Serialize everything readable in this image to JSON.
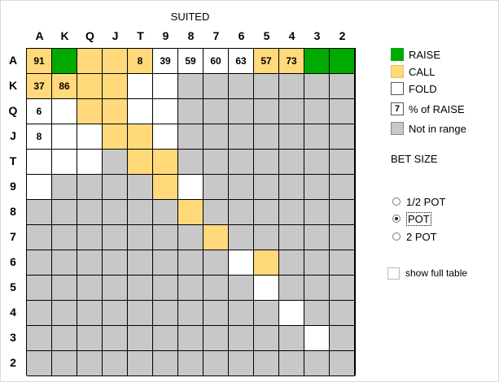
{
  "header": {
    "caption": "SUITED"
  },
  "grid": {
    "col_labels": [
      "A",
      "K",
      "Q",
      "J",
      "T",
      "9",
      "8",
      "7",
      "6",
      "5",
      "4",
      "3",
      "2"
    ],
    "row_labels": [
      "A",
      "K",
      "Q",
      "J",
      "T",
      "9",
      "8",
      "7",
      "6",
      "5",
      "4",
      "3",
      "2"
    ],
    "fills": [
      [
        "c",
        "r",
        "c",
        "c",
        "c",
        "f",
        "f",
        "f",
        "f",
        "c",
        "c",
        "r",
        "r"
      ],
      [
        "c",
        "c",
        "c",
        "c",
        "f",
        "f",
        "n",
        "n",
        "n",
        "n",
        "n",
        "n",
        "n"
      ],
      [
        "f",
        "f",
        "c",
        "c",
        "f",
        "f",
        "n",
        "n",
        "n",
        "n",
        "n",
        "n",
        "n"
      ],
      [
        "f",
        "f",
        "f",
        "c",
        "c",
        "f",
        "n",
        "n",
        "n",
        "n",
        "n",
        "n",
        "n"
      ],
      [
        "f",
        "f",
        "f",
        "n",
        "c",
        "c",
        "n",
        "n",
        "n",
        "n",
        "n",
        "n",
        "n"
      ],
      [
        "f",
        "n",
        "n",
        "n",
        "n",
        "c",
        "f",
        "n",
        "n",
        "n",
        "n",
        "n",
        "n"
      ],
      [
        "n",
        "n",
        "n",
        "n",
        "n",
        "n",
        "c",
        "n",
        "n",
        "n",
        "n",
        "n",
        "n"
      ],
      [
        "n",
        "n",
        "n",
        "n",
        "n",
        "n",
        "n",
        "c",
        "n",
        "n",
        "n",
        "n",
        "n"
      ],
      [
        "n",
        "n",
        "n",
        "n",
        "n",
        "n",
        "n",
        "n",
        "f",
        "c",
        "n",
        "n",
        "n"
      ],
      [
        "n",
        "n",
        "n",
        "n",
        "n",
        "n",
        "n",
        "n",
        "n",
        "f",
        "n",
        "n",
        "n"
      ],
      [
        "n",
        "n",
        "n",
        "n",
        "n",
        "n",
        "n",
        "n",
        "n",
        "n",
        "f",
        "n",
        "n"
      ],
      [
        "n",
        "n",
        "n",
        "n",
        "n",
        "n",
        "n",
        "n",
        "n",
        "n",
        "n",
        "f",
        "n"
      ],
      [
        "n",
        "n",
        "n",
        "n",
        "n",
        "n",
        "n",
        "n",
        "n",
        "n",
        "n",
        "n",
        "n"
      ]
    ],
    "values": [
      [
        "91",
        "",
        "",
        "",
        "8",
        "39",
        "59",
        "60",
        "63",
        "57",
        "73",
        "",
        ""
      ],
      [
        "37",
        "86",
        "",
        "",
        "",
        "",
        "",
        "",
        "",
        "",
        "",
        "",
        ""
      ],
      [
        "6",
        "",
        "",
        "",
        "",
        "",
        "",
        "",
        "",
        "",
        "",
        "",
        ""
      ],
      [
        "8",
        "",
        "",
        "",
        "",
        "",
        "",
        "",
        "",
        "",
        "",
        "",
        ""
      ],
      [
        "",
        "",
        "",
        "",
        "",
        "",
        "",
        "",
        "",
        "",
        "",
        "",
        ""
      ],
      [
        "",
        "",
        "",
        "",
        "",
        "",
        "",
        "",
        "",
        "",
        "",
        "",
        ""
      ],
      [
        "",
        "",
        "",
        "",
        "",
        "",
        "",
        "",
        "",
        "",
        "",
        "",
        ""
      ],
      [
        "",
        "",
        "",
        "",
        "",
        "",
        "",
        "",
        "",
        "",
        "",
        "",
        ""
      ],
      [
        "",
        "",
        "",
        "",
        "",
        "",
        "",
        "",
        "",
        "",
        "",
        "",
        ""
      ],
      [
        "",
        "",
        "",
        "",
        "",
        "",
        "",
        "",
        "",
        "",
        "",
        "",
        ""
      ],
      [
        "",
        "",
        "",
        "",
        "",
        "",
        "",
        "",
        "",
        "",
        "",
        "",
        ""
      ],
      [
        "",
        "",
        "",
        "",
        "",
        "",
        "",
        "",
        "",
        "",
        "",
        "",
        ""
      ],
      [
        "",
        "",
        "",
        "",
        "",
        "",
        "",
        "",
        "",
        "",
        "",
        "",
        ""
      ]
    ]
  },
  "colors": {
    "raise": "#00aa00",
    "call": "#ffd97a",
    "fold": "#ffffff",
    "not_in_range": "#c8c8c8"
  },
  "legend": {
    "raise": "RAISE",
    "call": "CALL",
    "fold": "FOLD",
    "pct_sample": "7",
    "pct_label": "% of RAISE",
    "not_in_range": "Not in range"
  },
  "bet_size": {
    "title": "BET SIZE",
    "options": [
      "1/2 POT",
      "POT",
      "2 POT"
    ],
    "selected": "POT"
  },
  "show_full_table": {
    "label": "show full table",
    "checked": false
  }
}
